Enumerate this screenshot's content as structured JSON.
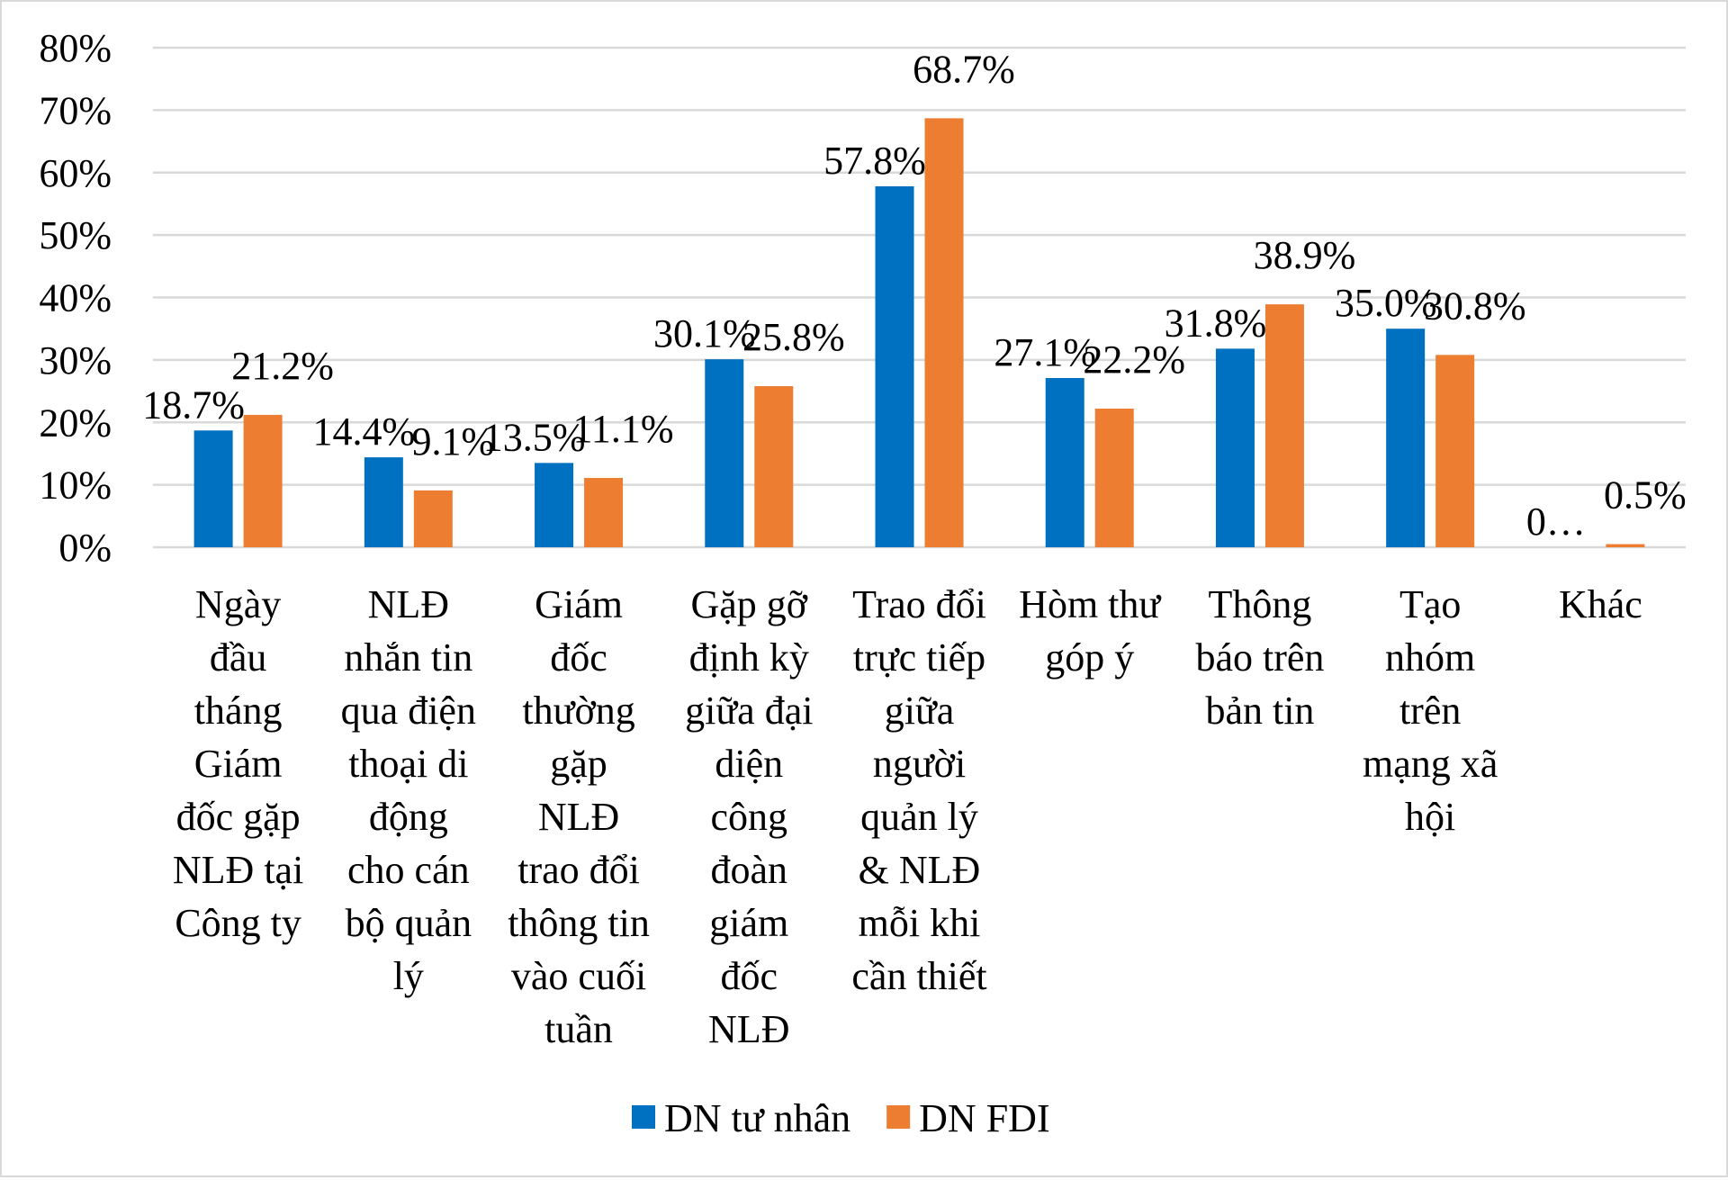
{
  "chart_data": {
    "type": "bar",
    "title": "",
    "xlabel": "",
    "ylabel": "",
    "ylim": [
      0,
      80
    ],
    "yticks": [
      "0%",
      "10%",
      "20%",
      "30%",
      "40%",
      "50%",
      "60%",
      "70%",
      "80%"
    ],
    "grid": true,
    "legend_placement": "bottom",
    "categories": [
      [
        "Ngày",
        "đầu",
        "tháng",
        "Giám",
        "đốc gặp",
        "NLĐ tại",
        "Công ty"
      ],
      [
        "NLĐ",
        "nhắn tin",
        "qua điện",
        "thoại di",
        "động",
        "cho cán",
        "bộ quản",
        "lý"
      ],
      [
        "Giám",
        "đốc",
        "thường",
        "gặp",
        "NLĐ",
        "trao đổi",
        "thông tin",
        "vào cuối",
        "tuần"
      ],
      [
        "Gặp gỡ",
        "định kỳ",
        "giữa đại",
        "diện",
        "công",
        "đoàn",
        "giám",
        "đốc",
        "NLĐ"
      ],
      [
        "Trao đổi",
        "trực tiếp",
        "giữa",
        "người",
        "quản lý",
        "& NLĐ",
        "mỗi khi",
        "cần thiết"
      ],
      [
        "Hòm thư",
        "góp ý"
      ],
      [
        "Thông",
        "báo trên",
        "bản tin"
      ],
      [
        "Tạo",
        "nhóm",
        "trên",
        "mạng xã",
        "hội"
      ],
      [
        "Khác"
      ]
    ],
    "series": [
      {
        "name": "DN tư nhân",
        "color": "#0070C0",
        "values": [
          18.7,
          14.4,
          13.5,
          30.1,
          57.8,
          27.1,
          31.8,
          35.0,
          0
        ],
        "labels": [
          "18.7%",
          "14.4%",
          "13.5%",
          "30.1%",
          "57.8%",
          "27.1%",
          "31.8%",
          "35.0%",
          "0…"
        ]
      },
      {
        "name": "DN FDI",
        "color": "#ED7D31",
        "values": [
          21.2,
          9.1,
          11.1,
          25.8,
          68.7,
          22.2,
          38.9,
          30.8,
          0.5
        ],
        "labels": [
          "21.2%",
          "9.1%",
          "11.1%",
          "25.8%",
          "68.7%",
          "22.2%",
          "38.9%",
          "30.8%",
          "0.5%"
        ]
      }
    ]
  }
}
